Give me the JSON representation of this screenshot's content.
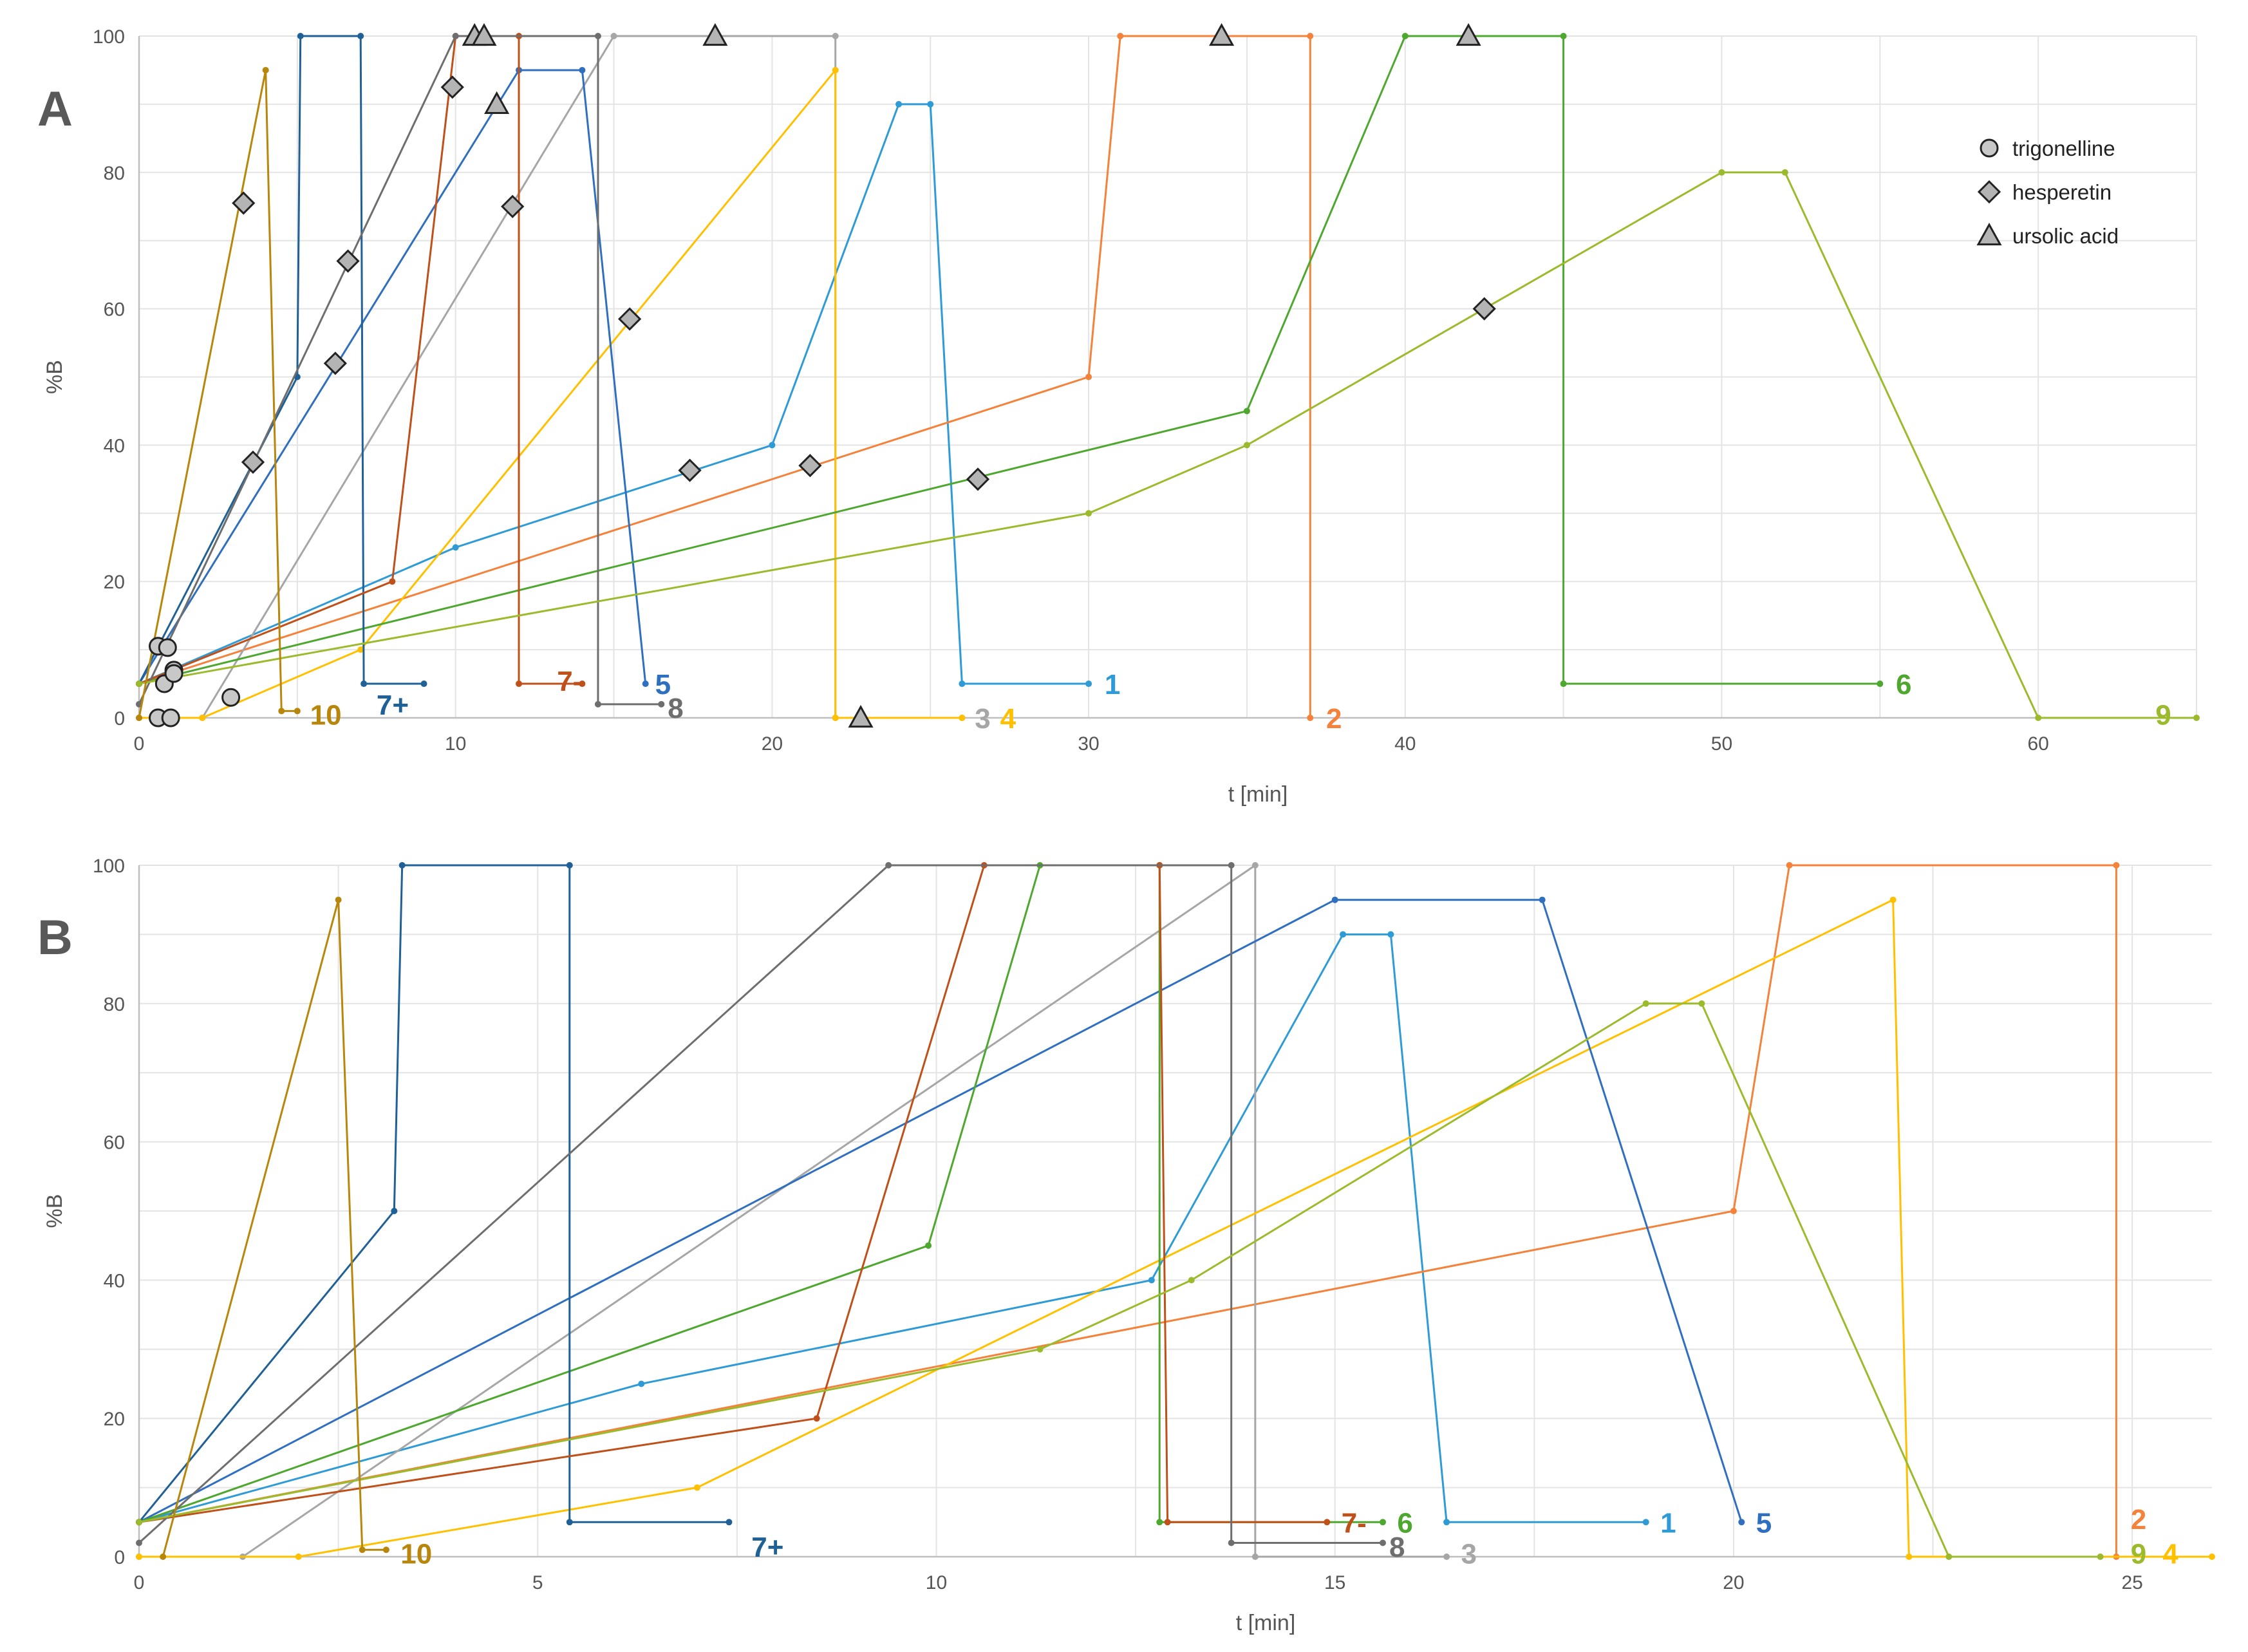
{
  "colors": {
    "1": "#2e9bd6",
    "2": "#f4823a",
    "3": "#a6a6a6",
    "4": "#ffc000",
    "5": "#2f6fbf",
    "6": "#4ea72e",
    "7+": "#1f6196",
    "7-": "#c0501a",
    "8": "#6e6e6e",
    "9": "#9bbb2c",
    "10": "#b8860b"
  },
  "chart_data": [
    {
      "panel": "A",
      "type": "line",
      "xlabel": "t [min]",
      "ylabel": "%B",
      "xlim": [
        0,
        65
      ],
      "ylim": [
        0,
        100
      ],
      "xticks": [
        0,
        10,
        20,
        30,
        40,
        50,
        60
      ],
      "yticks": [
        0,
        20,
        40,
        60,
        80,
        100
      ],
      "legend": {
        "position": "top-right",
        "entries": [
          {
            "label": "trigonelline",
            "marker": "circle"
          },
          {
            "label": "hesperetin",
            "marker": "diamond"
          },
          {
            "label": "ursolic acid",
            "marker": "triangle"
          }
        ]
      },
      "series": [
        {
          "name": "1",
          "points": [
            [
              0,
              5
            ],
            [
              10,
              25
            ],
            [
              20,
              40
            ],
            [
              24,
              90
            ],
            [
              25,
              90
            ],
            [
              26,
              5
            ],
            [
              30,
              5
            ]
          ],
          "label_at": [
            30.3,
            5
          ]
        },
        {
          "name": "2",
          "points": [
            [
              0,
              5
            ],
            [
              30,
              50
            ],
            [
              31,
              100
            ],
            [
              37,
              100
            ],
            [
              37,
              0
            ]
          ],
          "label_at": [
            37.3,
            0
          ]
        },
        {
          "name": "3",
          "points": [
            [
              0,
              0
            ],
            [
              2,
              0
            ],
            [
              15,
              100
            ],
            [
              22,
              100
            ],
            [
              22,
              0
            ],
            [
              26,
              0
            ]
          ],
          "label_at": [
            26.2,
            0
          ]
        },
        {
          "name": "4",
          "points": [
            [
              0,
              0
            ],
            [
              2,
              0
            ],
            [
              7,
              10
            ],
            [
              22,
              95
            ],
            [
              22,
              0
            ],
            [
              26,
              0
            ]
          ],
          "label_at": [
            27.0,
            0
          ]
        },
        {
          "name": "5",
          "points": [
            [
              0,
              5
            ],
            [
              12,
              95
            ],
            [
              14,
              95
            ],
            [
              16,
              5
            ]
          ],
          "label_at": [
            16.1,
            5
          ]
        },
        {
          "name": "6",
          "points": [
            [
              0,
              5
            ],
            [
              35,
              45
            ],
            [
              40,
              100
            ],
            [
              45,
              100
            ],
            [
              45,
              5
            ],
            [
              55,
              5
            ]
          ],
          "label_at": [
            55.3,
            5
          ]
        },
        {
          "name": "7+",
          "points": [
            [
              0,
              5
            ],
            [
              5,
              50
            ],
            [
              5.1,
              100
            ],
            [
              7,
              100
            ],
            [
              7.1,
              5
            ],
            [
              9,
              5
            ]
          ],
          "label_at": [
            7.3,
            2
          ]
        },
        {
          "name": "7-",
          "points": [
            [
              0,
              5
            ],
            [
              8,
              20
            ],
            [
              10,
              100
            ],
            [
              12,
              100
            ],
            [
              12,
              5
            ],
            [
              14,
              5
            ]
          ],
          "label_at": [
            13.0,
            5.5
          ]
        },
        {
          "name": "8",
          "points": [
            [
              0,
              2
            ],
            [
              10,
              100
            ],
            [
              14.5,
              100
            ],
            [
              14.5,
              2
            ],
            [
              16.5,
              2
            ]
          ],
          "label_at": [
            16.5,
            1.5
          ]
        },
        {
          "name": "9",
          "points": [
            [
              0,
              5
            ],
            [
              30,
              30
            ],
            [
              35,
              40
            ],
            [
              50,
              80
            ],
            [
              52,
              80
            ],
            [
              60,
              0
            ],
            [
              65,
              0
            ]
          ],
          "label_at": [
            63.5,
            0.5
          ]
        },
        {
          "name": "10",
          "points": [
            [
              0,
              0
            ],
            [
              4,
              95
            ],
            [
              4.5,
              1
            ],
            [
              5,
              1
            ]
          ],
          "label_at": [
            5.2,
            0.5
          ]
        }
      ],
      "markers": {
        "trigonelline": [
          [
            0.6,
            10.5
          ],
          [
            0.9,
            10.3
          ],
          [
            0.8,
            5
          ],
          [
            1.1,
            7
          ],
          [
            1.1,
            6.5
          ],
          [
            0.6,
            0
          ],
          [
            1.0,
            0
          ],
          [
            2.9,
            3
          ]
        ],
        "hesperetin": [
          [
            3.3,
            75.5
          ],
          [
            3.6,
            37.5
          ],
          [
            6.6,
            67
          ],
          [
            6.2,
            52
          ],
          [
            9.9,
            92.5
          ],
          [
            11.8,
            75
          ],
          [
            15.5,
            58.5
          ],
          [
            17.4,
            36.3
          ],
          [
            21.2,
            37
          ],
          [
            26.5,
            35
          ],
          [
            42.5,
            60
          ]
        ],
        "ursolic_acid": [
          [
            10.6,
            100
          ],
          [
            10.9,
            100
          ],
          [
            11.3,
            90
          ],
          [
            18.2,
            100
          ],
          [
            22.8,
            0
          ],
          [
            34.2,
            100
          ],
          [
            42.0,
            100
          ]
        ]
      }
    },
    {
      "panel": "B",
      "type": "line",
      "xlabel": "t [min]",
      "ylabel": "%B",
      "xlim": [
        0,
        26
      ],
      "ylim": [
        0,
        100
      ],
      "xticks": [
        0,
        5,
        10,
        15,
        20,
        25
      ],
      "yticks": [
        0,
        20,
        40,
        60,
        80,
        100
      ],
      "series": [
        {
          "name": "1",
          "points": [
            [
              0,
              5
            ],
            [
              6.3,
              25
            ],
            [
              12.7,
              40
            ],
            [
              15.1,
              90
            ],
            [
              15.7,
              90
            ],
            [
              16.4,
              5
            ],
            [
              18.9,
              5
            ]
          ],
          "label_at": [
            19.0,
            5
          ]
        },
        {
          "name": "2",
          "points": [
            [
              0,
              5
            ],
            [
              20,
              50
            ],
            [
              20.7,
              100
            ],
            [
              24.8,
              100
            ],
            [
              24.8,
              0
            ]
          ],
          "label_at": [
            24.9,
            5.5
          ]
        },
        {
          "name": "3",
          "points": [
            [
              0,
              0
            ],
            [
              1.3,
              0
            ],
            [
              14,
              100
            ],
            [
              14,
              0
            ],
            [
              16.4,
              0
            ]
          ],
          "label_at": [
            16.5,
            0.5
          ]
        },
        {
          "name": "4",
          "points": [
            [
              0,
              0
            ],
            [
              2,
              0
            ],
            [
              7,
              10
            ],
            [
              22,
              95
            ],
            [
              22.2,
              0
            ],
            [
              26,
              0
            ]
          ],
          "label_at": [
            25.3,
            0.5
          ]
        },
        {
          "name": "5",
          "points": [
            [
              0,
              5
            ],
            [
              15,
              95
            ],
            [
              17.6,
              95
            ],
            [
              20.1,
              5
            ]
          ],
          "label_at": [
            20.2,
            5
          ]
        },
        {
          "name": "6",
          "points": [
            [
              0,
              5
            ],
            [
              9.9,
              45
            ],
            [
              11.3,
              100
            ],
            [
              12.8,
              100
            ],
            [
              12.8,
              5
            ],
            [
              15.6,
              5
            ]
          ],
          "label_at": [
            15.7,
            5
          ]
        },
        {
          "name": "7+",
          "points": [
            [
              0,
              5
            ],
            [
              3.2,
              50
            ],
            [
              3.3,
              100
            ],
            [
              5.4,
              100
            ],
            [
              5.4,
              5
            ],
            [
              7.4,
              5
            ]
          ],
          "label_at": [
            7.6,
            1.5
          ]
        },
        {
          "name": "7-",
          "points": [
            [
              0,
              5
            ],
            [
              8.5,
              20
            ],
            [
              10.6,
              100
            ],
            [
              12.8,
              100
            ],
            [
              12.9,
              5
            ],
            [
              14.9,
              5
            ]
          ],
          "label_at": [
            15.0,
            5
          ]
        },
        {
          "name": "8",
          "points": [
            [
              0,
              2
            ],
            [
              9.4,
              100
            ],
            [
              13.7,
              100
            ],
            [
              13.7,
              2
            ],
            [
              15.6,
              2
            ]
          ],
          "label_at": [
            15.6,
            1.5
          ]
        },
        {
          "name": "9",
          "points": [
            [
              0,
              5
            ],
            [
              11.3,
              30
            ],
            [
              13.2,
              40
            ],
            [
              18.9,
              80
            ],
            [
              19.6,
              80
            ],
            [
              22.7,
              0
            ],
            [
              24.6,
              0
            ]
          ],
          "label_at": [
            24.9,
            0.5
          ]
        },
        {
          "name": "10",
          "points": [
            [
              0.3,
              0
            ],
            [
              2.5,
              95
            ],
            [
              2.8,
              1
            ],
            [
              3.1,
              1
            ]
          ],
          "label_at": [
            3.2,
            0.5
          ]
        }
      ]
    }
  ]
}
